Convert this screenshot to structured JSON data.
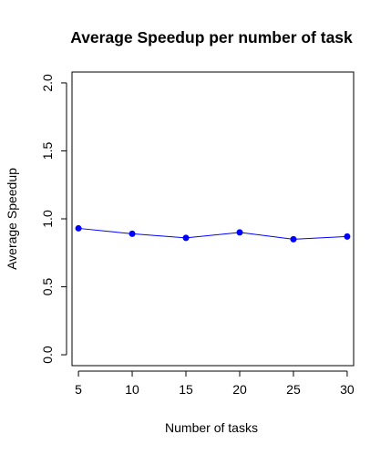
{
  "chart_data": {
    "type": "line",
    "title": "Average Speedup per number of task",
    "xlabel": "Number of tasks",
    "ylabel": "Average Speedup",
    "x": [
      5,
      10,
      15,
      20,
      25,
      30
    ],
    "series": [
      {
        "values": [
          0.93,
          0.89,
          0.86,
          0.9,
          0.85,
          0.87
        ],
        "color": "#0000ff"
      }
    ],
    "xticks": [
      5,
      10,
      15,
      20,
      25,
      30
    ],
    "yticks": [
      0.0,
      0.5,
      1.0,
      1.5,
      2.0
    ],
    "xtick_labels": [
      "5",
      "10",
      "15",
      "20",
      "25",
      "30"
    ],
    "ytick_labels": [
      "0.0",
      "0.5",
      "1.0",
      "1.5",
      "2.0"
    ],
    "xlim": [
      4.4,
      30.6
    ],
    "ylim": [
      -0.08,
      2.08
    ],
    "grid": false,
    "marker": "filled-circle"
  }
}
